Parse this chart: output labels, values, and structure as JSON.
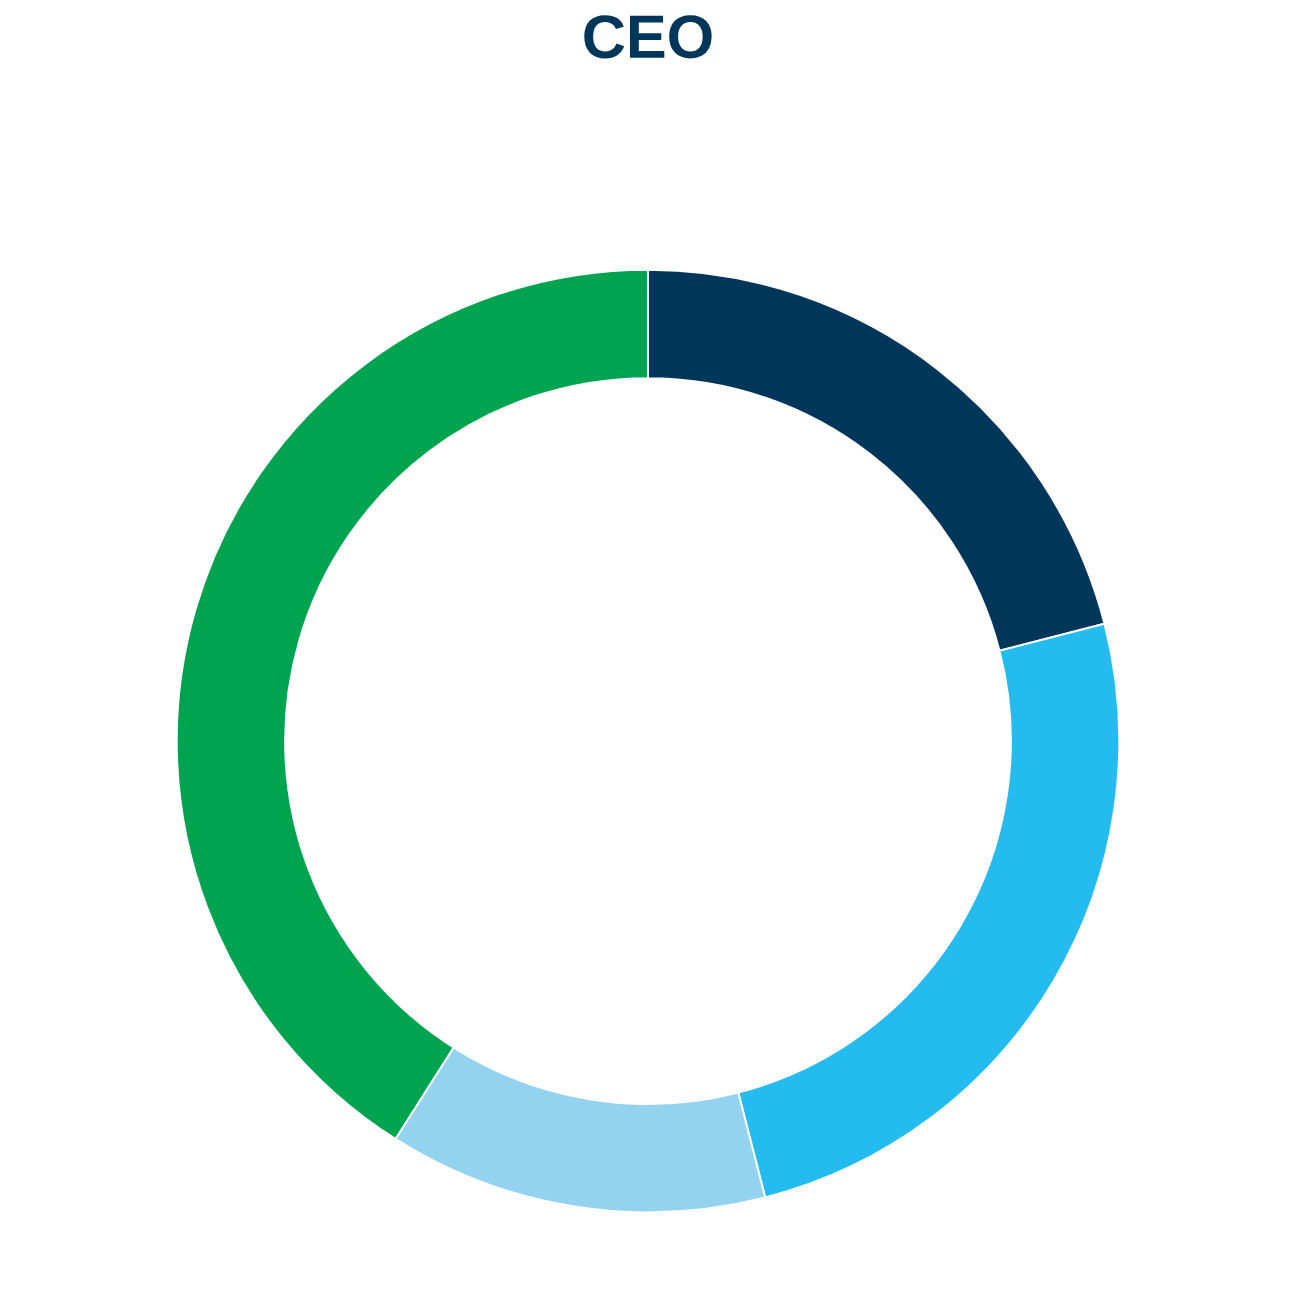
{
  "chart_data": {
    "type": "donut",
    "title": "CEO",
    "categories": [
      null,
      null,
      null,
      null
    ],
    "values": [
      21,
      25,
      13,
      41
    ],
    "colors": [
      "#00365a",
      "#24bbee",
      "#93d3f0",
      "#00a450"
    ]
  }
}
